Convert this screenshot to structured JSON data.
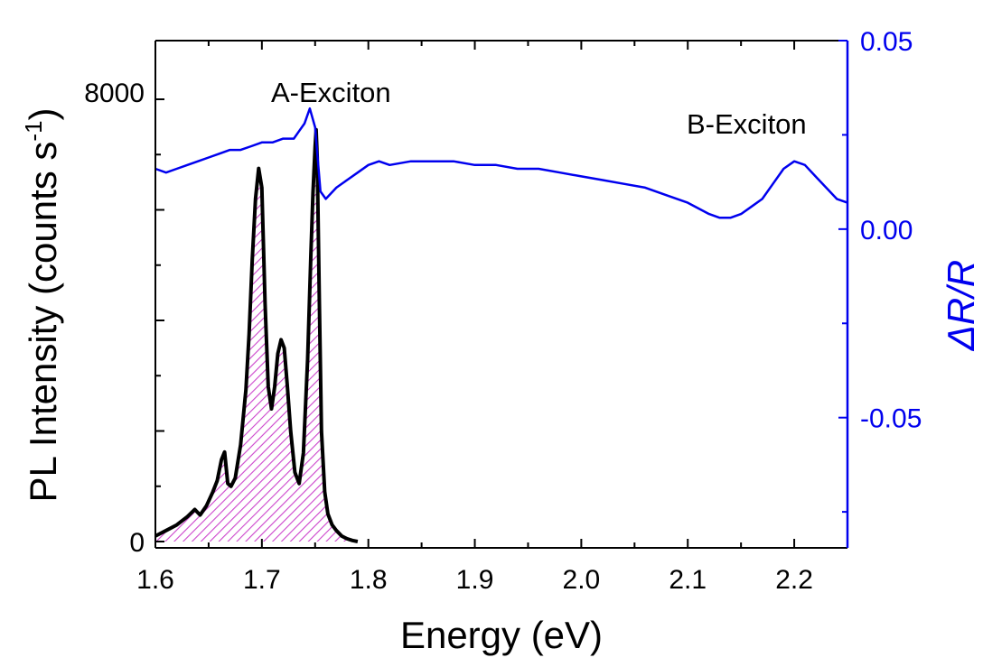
{
  "chart_data": {
    "type": "line",
    "xlabel": "Energy (eV)",
    "ylabel_main": "PL Intensity (counts s",
    "ylabel_sup": "-1",
    "ylabel_close": ")",
    "y2label": "ΔR/R",
    "xlim": [
      1.6,
      2.25
    ],
    "ylim": [
      0,
      8000
    ],
    "y2lim": [
      -0.08,
      0.05
    ],
    "xticks": [
      "1.6",
      "1.7",
      "1.8",
      "1.9",
      "2.0",
      "2.1",
      "2.2"
    ],
    "yticks_left": [
      "0",
      "8000"
    ],
    "yticks_right": [
      "0.05",
      "0.00",
      "-0.05"
    ],
    "annotations": [
      "A-Exciton",
      "B-Exciton"
    ],
    "colors": {
      "pl": "#000000",
      "reflectance": "#0000ee",
      "fill_hatch": "#cc44cc",
      "right_axis": "#0000ee"
    },
    "series": [
      {
        "axis": "left",
        "fill": "hatched",
        "x": [
          1.6,
          1.61,
          1.62,
          1.63,
          1.637,
          1.642,
          1.648,
          1.654,
          1.658,
          1.662,
          1.665,
          1.668,
          1.671,
          1.675,
          1.68,
          1.685,
          1.688,
          1.691,
          1.694,
          1.697,
          1.7,
          1.703,
          1.706,
          1.709,
          1.712,
          1.715,
          1.718,
          1.721,
          1.724,
          1.727,
          1.731,
          1.735,
          1.739,
          1.743,
          1.746,
          1.748,
          1.75,
          1.751,
          1.752,
          1.754,
          1.756,
          1.759,
          1.762,
          1.766,
          1.77,
          1.775,
          1.78,
          1.785,
          1.79
        ],
        "y": [
          100,
          200,
          300,
          450,
          580,
          480,
          650,
          900,
          1100,
          1480,
          1620,
          1050,
          1000,
          1150,
          1750,
          2750,
          3750,
          5100,
          6200,
          6750,
          6400,
          4300,
          2800,
          2400,
          2800,
          3400,
          3650,
          3500,
          2800,
          2000,
          1250,
          1050,
          1600,
          3300,
          5200,
          6300,
          7150,
          7450,
          6950,
          4300,
          2000,
          900,
          500,
          300,
          200,
          100,
          50,
          20,
          0
        ]
      },
      {
        "axis": "right",
        "x": [
          1.6,
          1.61,
          1.62,
          1.63,
          1.64,
          1.65,
          1.66,
          1.67,
          1.68,
          1.69,
          1.7,
          1.71,
          1.72,
          1.73,
          1.735,
          1.74,
          1.745,
          1.75,
          1.755,
          1.76,
          1.77,
          1.78,
          1.79,
          1.8,
          1.81,
          1.82,
          1.84,
          1.86,
          1.88,
          1.9,
          1.92,
          1.94,
          1.96,
          1.98,
          2.0,
          2.02,
          2.04,
          2.06,
          2.08,
          2.1,
          2.12,
          2.13,
          2.14,
          2.15,
          2.16,
          2.17,
          2.18,
          2.19,
          2.2,
          2.21,
          2.22,
          2.23,
          2.24,
          2.25
        ],
        "y": [
          0.016,
          0.015,
          0.016,
          0.017,
          0.018,
          0.019,
          0.02,
          0.021,
          0.021,
          0.022,
          0.023,
          0.023,
          0.024,
          0.024,
          0.026,
          0.028,
          0.032,
          0.027,
          0.01,
          0.008,
          0.011,
          0.013,
          0.015,
          0.017,
          0.018,
          0.017,
          0.018,
          0.018,
          0.018,
          0.017,
          0.017,
          0.016,
          0.016,
          0.015,
          0.014,
          0.013,
          0.012,
          0.011,
          0.009,
          0.007,
          0.004,
          0.003,
          0.003,
          0.004,
          0.006,
          0.008,
          0.012,
          0.016,
          0.018,
          0.017,
          0.014,
          0.011,
          0.008,
          0.007
        ]
      }
    ]
  }
}
